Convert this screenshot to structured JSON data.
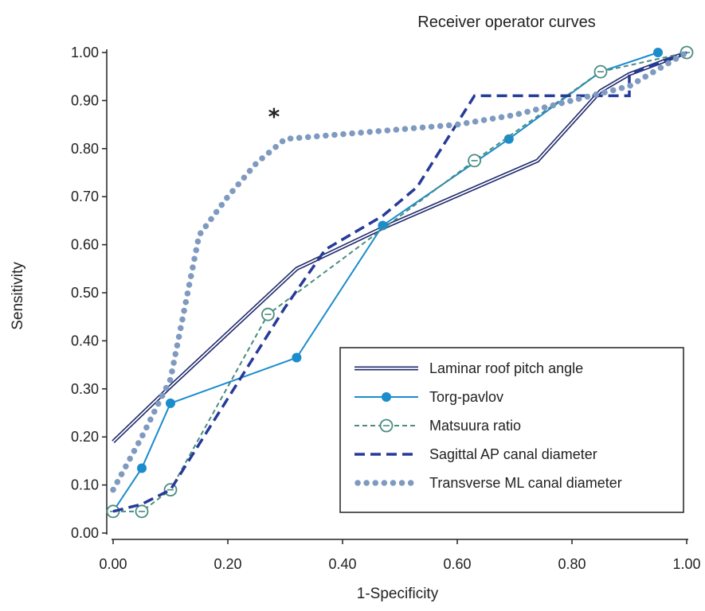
{
  "chart_data": {
    "type": "line",
    "title": "Receiver operator curves",
    "xlabel": "1-Specificity",
    "ylabel": "Sensitivity",
    "xlim": [
      0,
      1
    ],
    "ylim": [
      0,
      1
    ],
    "x_ticks": [
      "0.00",
      "0.20",
      "0.40",
      "0.60",
      "0.80",
      "1.00"
    ],
    "y_ticks": [
      "0.00",
      "0.10",
      "0.20",
      "0.30",
      "0.40",
      "0.50",
      "0.60",
      "0.70",
      "0.80",
      "0.90",
      "1.00"
    ],
    "grid": false,
    "legend_position": "bottom-right",
    "annotation": "*",
    "series": [
      {
        "name": "Laminar roof pitch angle",
        "color": "#1f2a6b",
        "style": "double-line",
        "x": [
          0,
          0.1,
          0.32,
          0.47,
          0.74,
          0.85,
          0.9,
          1.0
        ],
        "y": [
          0.19,
          0.305,
          0.55,
          0.635,
          0.775,
          0.92,
          0.955,
          1.0
        ]
      },
      {
        "name": "Torg-pavlov",
        "color": "#1b8ccc",
        "style": "solid-filled-circle",
        "x": [
          0,
          0.05,
          0.1,
          0.32,
          0.47,
          0.69,
          0.85,
          0.95
        ],
        "y": [
          0.045,
          0.135,
          0.27,
          0.365,
          0.64,
          0.82,
          0.96,
          1.0
        ]
      },
      {
        "name": "Matsuura ratio",
        "color": "#4a8c80",
        "style": "dashed-open-circle",
        "x": [
          0,
          0.05,
          0.1,
          0.27,
          0.63,
          0.85,
          1.0
        ],
        "y": [
          0.045,
          0.045,
          0.09,
          0.455,
          0.775,
          0.96,
          1.0
        ]
      },
      {
        "name": "Sagittal AP canal diameter",
        "color": "#263a99",
        "style": "dashed",
        "x": [
          0,
          0.05,
          0.1,
          0.2,
          0.3,
          0.37,
          0.47,
          0.53,
          0.63,
          0.9,
          0.9,
          1.0
        ],
        "y": [
          0.045,
          0.06,
          0.09,
          0.28,
          0.47,
          0.59,
          0.66,
          0.72,
          0.91,
          0.91,
          0.955,
          1.0
        ]
      },
      {
        "name": "Transverse ML canal diameter",
        "color": "#7f9ac0",
        "style": "dotted",
        "x": [
          0,
          0.05,
          0.1,
          0.13,
          0.15,
          0.2,
          0.25,
          0.3,
          0.4,
          0.5,
          0.6,
          0.7,
          0.8,
          0.9,
          1.0
        ],
        "y": [
          0.09,
          0.2,
          0.32,
          0.5,
          0.62,
          0.7,
          0.77,
          0.82,
          0.83,
          0.84,
          0.85,
          0.87,
          0.9,
          0.93,
          1.0
        ]
      }
    ]
  }
}
